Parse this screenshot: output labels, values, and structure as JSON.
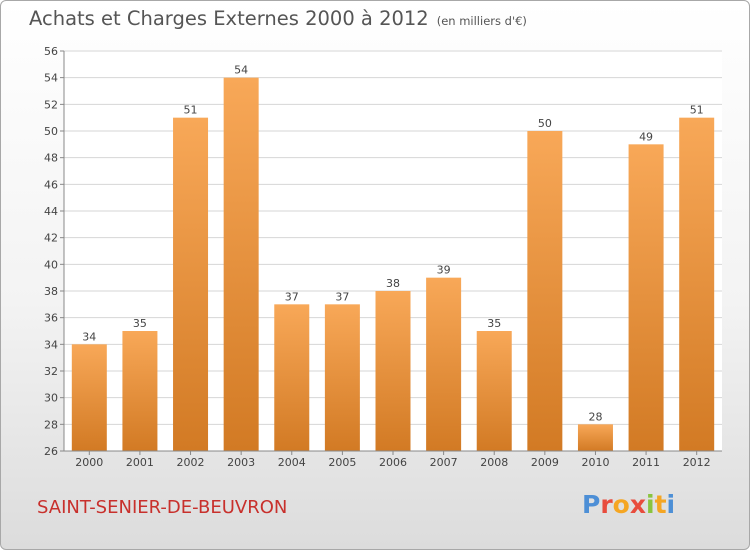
{
  "title": "Achats et Charges Externes 2000 à 2012",
  "unit": "(en milliers d'€)",
  "town": "SAINT-SENIER-DE-BEUVRON",
  "logo": {
    "letters": [
      "P",
      "r",
      "o",
      "x",
      "i",
      "t",
      "i"
    ],
    "colors": [
      "#4d8fd6",
      "#e84c3d",
      "#f5a623",
      "#e84c3d",
      "#8ac43f",
      "#f5a623",
      "#4d8fd6"
    ]
  },
  "colors": {
    "bar_light": "#f8a858",
    "bar_dark": "#d27a24",
    "grid": "#d6d6d6",
    "axis": "#888888",
    "text": "#444444"
  },
  "chart_data": {
    "type": "bar",
    "title": "Achats et Charges Externes 2000 à 2012",
    "categories": [
      "2000",
      "2001",
      "2002",
      "2003",
      "2004",
      "2005",
      "2006",
      "2007",
      "2008",
      "2009",
      "2010",
      "2011",
      "2012"
    ],
    "values": [
      34,
      35,
      51,
      54,
      37,
      37,
      38,
      39,
      35,
      50,
      28,
      49,
      51
    ],
    "ylim": [
      26,
      56
    ],
    "yticks": [
      26,
      28,
      30,
      32,
      34,
      36,
      38,
      40,
      42,
      44,
      46,
      48,
      50,
      52,
      54,
      56
    ],
    "grid": true,
    "xlabel": "",
    "ylabel": ""
  }
}
